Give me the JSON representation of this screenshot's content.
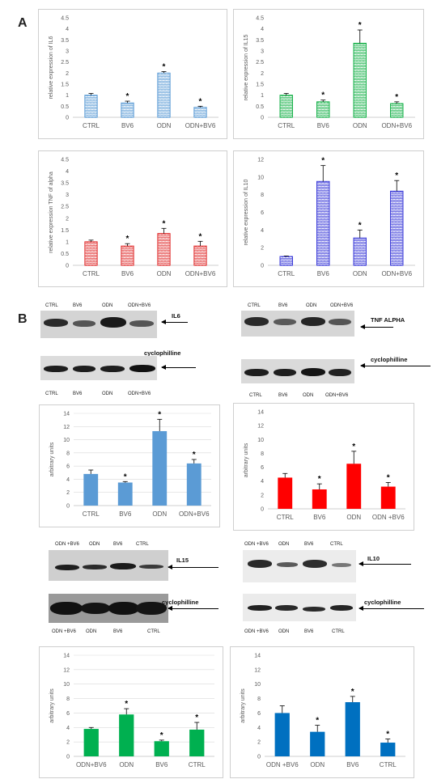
{
  "panels": {
    "a": "A",
    "b": "B"
  },
  "colors": {
    "il6": "#5b9bd5",
    "il15": "#19b24b",
    "tnf": "#e03030",
    "il10": "#3a3ad8",
    "blue_bar": "#5b9bd5",
    "red_bar": "#ff0000",
    "green_bar": "#00b050",
    "blue10_bar": "#0070c0",
    "axis_text": "#595959",
    "grid": "#d9d9d9"
  },
  "blots": {
    "il6": {
      "lanes": [
        "CTRL",
        "BV6",
        "ODN",
        "ODN+BV6"
      ],
      "target": "IL6",
      "loading": "cyclophilline",
      "loading_lanes": [
        "CTRL",
        "BV6",
        "ODN",
        "ODN+BV6"
      ]
    },
    "tnf": {
      "lanes": [
        "CTRL",
        "BV6",
        "ODN",
        "ODN+BV6"
      ],
      "target": "TNF ALPHA",
      "loading": "cyclophilline",
      "loading_lanes": [
        "CTRL",
        "BV6",
        "ODN",
        "ODN+BV6"
      ]
    },
    "il15": {
      "lanes": [
        "ODN +BV6",
        "ODN",
        "BV6",
        "CTRL"
      ],
      "target": "IL15",
      "loading": "cyclophilline",
      "loading_lanes": [
        "ODN +BV6",
        "ODN",
        "BV6",
        "CTRL"
      ]
    },
    "il10": {
      "lanes": [
        "ODN +BV6",
        "ODN",
        "BV6",
        "CTRL"
      ],
      "target": "IL10",
      "loading": "cyclophilline",
      "loading_lanes": [
        "ODN +BV6",
        "ODN",
        "BV6",
        "CTRL"
      ]
    }
  },
  "chart_data": [
    {
      "id": "a_il6",
      "type": "bar",
      "categories": [
        "CTRL",
        "BV6",
        "ODN",
        "ODN+BV6"
      ],
      "values": [
        1.0,
        0.65,
        2.0,
        0.45
      ],
      "errors": [
        0.08,
        0.08,
        0.07,
        0.05
      ],
      "significant": [
        false,
        true,
        true,
        true
      ],
      "ylabel": "relative expression  of  IL6",
      "ylim": [
        0,
        4.5
      ],
      "ticks": [
        0,
        0.5,
        1,
        1.5,
        2,
        2.5,
        3,
        3.5,
        4,
        4.5
      ],
      "tick_labels": [
        "0",
        "0.5",
        "1",
        "1.5",
        "2",
        "2.5",
        "3",
        "3.5",
        "4",
        "4.5"
      ],
      "fill": "pattern",
      "color": "#5b9bd5",
      "grid": false
    },
    {
      "id": "a_il15",
      "type": "bar",
      "categories": [
        "CTRL",
        "BV6",
        "ODN",
        "ODN+BV6"
      ],
      "values": [
        1.0,
        0.7,
        3.35,
        0.62
      ],
      "errors": [
        0.08,
        0.08,
        0.6,
        0.08
      ],
      "significant": [
        false,
        true,
        true,
        true
      ],
      "ylabel": "relative expression of  IL15",
      "ylim": [
        0,
        4.5
      ],
      "ticks": [
        0,
        0.5,
        1,
        1.5,
        2,
        2.5,
        3,
        3.5,
        4,
        4.5
      ],
      "tick_labels": [
        "0",
        "0.5",
        "1",
        "1.5",
        "2",
        "2.5",
        "3",
        "3.5",
        "4",
        "4.5"
      ],
      "fill": "pattern",
      "color": "#19b24b",
      "grid": false
    },
    {
      "id": "a_tnf",
      "type": "bar",
      "categories": [
        "CTRL",
        "BV6",
        "ODN",
        "ODN+BV6"
      ],
      "values": [
        1.0,
        0.82,
        1.35,
        0.82
      ],
      "errors": [
        0.07,
        0.1,
        0.22,
        0.2
      ],
      "significant": [
        false,
        true,
        true,
        true
      ],
      "ylabel": "relative expression TNF of alpha",
      "ylim": [
        0,
        4.5
      ],
      "ticks": [
        0,
        0.5,
        1,
        1.5,
        2,
        2.5,
        3,
        3.5,
        4,
        4.5
      ],
      "tick_labels": [
        "0",
        "0.5",
        "1",
        "1.5",
        "2",
        "2.5",
        "3",
        "3.5",
        "4",
        "4.5"
      ],
      "fill": "pattern",
      "color": "#e03030",
      "grid": false
    },
    {
      "id": "a_il10",
      "type": "bar",
      "categories": [
        "CTRL",
        "BV6",
        "ODN",
        "ODN+BV6"
      ],
      "values": [
        1.0,
        9.5,
        3.1,
        8.4
      ],
      "errors": [
        0.05,
        1.8,
        0.9,
        1.2
      ],
      "significant": [
        false,
        true,
        true,
        true
      ],
      "ylabel": "relative expression of  IL10",
      "ylim": [
        0,
        12
      ],
      "ticks": [
        0,
        2,
        4,
        6,
        8,
        10,
        12
      ],
      "tick_labels": [
        "0",
        "2",
        "4",
        "6",
        "8",
        "10",
        "12"
      ],
      "fill": "pattern",
      "color": "#3a3ad8",
      "grid": false
    },
    {
      "id": "b_il6",
      "type": "bar",
      "categories": [
        "CTRL",
        "BV6",
        "ODN",
        "ODN+BV6"
      ],
      "values": [
        4.8,
        3.5,
        11.3,
        6.4
      ],
      "errors": [
        0.6,
        0.15,
        1.8,
        0.6
      ],
      "significant": [
        false,
        true,
        true,
        true
      ],
      "ylabel": "arbitrary units",
      "ylim": [
        0,
        14
      ],
      "ticks": [
        0,
        2,
        4,
        6,
        8,
        10,
        12,
        14
      ],
      "tick_labels": [
        "0",
        "2",
        "4",
        "6",
        "8",
        "10",
        "12",
        "14"
      ],
      "fill": "solid",
      "color": "#5b9bd5",
      "grid": true
    },
    {
      "id": "b_tnf",
      "type": "bar",
      "categories": [
        "CTRL",
        "BV6",
        "ODN",
        "ODN +BV6"
      ],
      "values": [
        4.5,
        2.8,
        6.5,
        3.2
      ],
      "errors": [
        0.6,
        0.8,
        1.8,
        0.6
      ],
      "significant": [
        false,
        true,
        true,
        true
      ],
      "ylabel": "arbitrary units",
      "ylim": [
        0,
        14
      ],
      "ticks": [
        0,
        2,
        4,
        6,
        8,
        10,
        12,
        14
      ],
      "tick_labels": [
        "0",
        "2",
        "4",
        "6",
        "8",
        "10",
        "12",
        "14"
      ],
      "fill": "solid",
      "color": "#ff0000",
      "grid": false
    },
    {
      "id": "b_il15",
      "type": "bar",
      "categories": [
        "ODN+BV6",
        "ODN",
        "BV6",
        "CTRL"
      ],
      "values": [
        3.8,
        5.8,
        2.1,
        3.7
      ],
      "errors": [
        0.2,
        0.8,
        0.15,
        1.0
      ],
      "significant": [
        false,
        true,
        true,
        true
      ],
      "ylabel": "arbitrary units",
      "ylim": [
        0,
        14
      ],
      "ticks": [
        0,
        2,
        4,
        6,
        8,
        10,
        12,
        14
      ],
      "tick_labels": [
        "0",
        "2",
        "4",
        "6",
        "8",
        "10",
        "12",
        "14"
      ],
      "fill": "solid",
      "color": "#00b050",
      "grid": true
    },
    {
      "id": "b_il10",
      "type": "bar",
      "categories": [
        "ODN +BV6",
        "ODN",
        "BV6",
        "CTRL"
      ],
      "values": [
        6.0,
        3.4,
        7.5,
        1.9
      ],
      "errors": [
        1.0,
        0.9,
        0.8,
        0.5
      ],
      "significant": [
        false,
        true,
        true,
        true
      ],
      "ylabel": "arbitrary units",
      "ylim": [
        0,
        14
      ],
      "ticks": [
        0,
        2,
        4,
        6,
        8,
        10,
        12,
        14
      ],
      "tick_labels": [
        "0",
        "2",
        "4",
        "6",
        "8",
        "10",
        "12",
        "14"
      ],
      "fill": "solid",
      "color": "#0070c0",
      "grid": false
    }
  ]
}
